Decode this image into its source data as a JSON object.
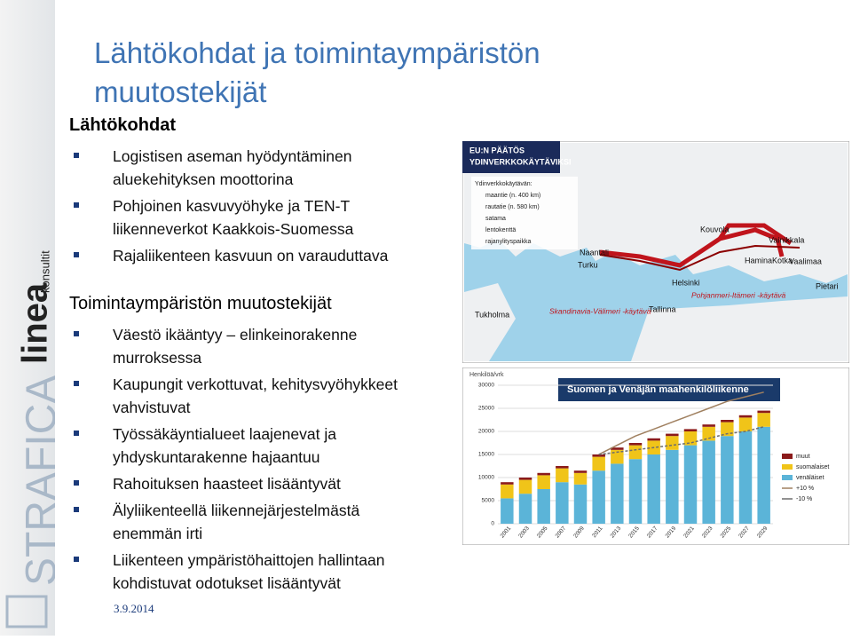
{
  "sidebar": {
    "logo_top": "linea",
    "logo_top_sub": "konsultit",
    "logo_bottom": "STRAFICA"
  },
  "title": [
    "Lähtökohdat ja toimintaympäristön",
    "muutostekijät"
  ],
  "sections": [
    {
      "heading": "Lähtökohdat",
      "items": [
        [
          "Logistisen aseman hyödyntäminen",
          "aluekehityksen moottorina"
        ],
        [
          "Pohjoinen kasvuvyöhyke ja TEN-T",
          "liikenneverkot Kaakkois-Suomessa"
        ],
        [
          "Rajaliikenteen kasvuun on varauduttava"
        ]
      ]
    },
    {
      "heading": "Toimintaympäristön muutostekijät",
      "items": [
        [
          "Väestö ikääntyy – elinkeinorakenne",
          "murroksessa"
        ],
        [
          "Kaupungit verkottuvat, kehitysvyöhykkeet",
          "vahvistuvat"
        ],
        [
          "Työssäkäyntialueet laajenevat ja",
          "yhdyskuntarakenne hajaantuu"
        ],
        [
          "Rahoituksen haasteet lisääntyvät"
        ],
        [
          "Älyliikenteellä liikennejärjestelmästä",
          "enemmän irti"
        ],
        [
          "Liikenteen ympäristöhaittojen hallintaan",
          "kohdistuvat odotukset lisääntyvät"
        ]
      ]
    }
  ],
  "date": "3.9.2014",
  "map": {
    "header": [
      "EU:N PÄÄTÖS",
      "YDINVERKKOKÄYTÄVIKSI"
    ],
    "legend": [
      "Ydinverkkokäytävän:",
      "maantie (n. 400 km)",
      "rautatie (n. 580 km)",
      "satama",
      "lentokenttä",
      "rajanylityspaikka"
    ],
    "places": [
      "Kouvola",
      "Vainikkala",
      "Naantali",
      "Turku",
      "Helsinki",
      "HaminaKotka",
      "Vaalimaa",
      "Pietari",
      "Tukholma",
      "Tallinna"
    ],
    "corridors": [
      "Skandinavia-Välimeri -käytävä",
      "Pohjanmeri-Itämeri -käytävä"
    ]
  },
  "chart": {
    "type": "bar",
    "title": "Suomen ja Venäjän maahenkilöliikenne",
    "ylabel": "Henkilöä/vrk",
    "categories": [
      "2001",
      "2003",
      "2005",
      "2007",
      "2009",
      "2011",
      "2013",
      "2015",
      "2017",
      "2019",
      "2021",
      "2023",
      "2025",
      "2027",
      "2029"
    ],
    "series": [
      {
        "name": "venäläiset",
        "color": "#5bb4d8",
        "values": [
          5500,
          6500,
          7500,
          9000,
          8500,
          11500,
          13000,
          14000,
          15000,
          16000,
          17000,
          18000,
          19000,
          20000,
          21000
        ]
      },
      {
        "name": "suomalaiset",
        "color": "#f0c419",
        "values": [
          3000,
          3000,
          3000,
          3000,
          2500,
          3000,
          3000,
          3000,
          3000,
          3000,
          3000,
          3000,
          3000,
          3000,
          3000
        ]
      },
      {
        "name": "muut",
        "color": "#8b1a1a",
        "values": [
          500,
          500,
          500,
          500,
          500,
          500,
          500,
          500,
          500,
          500,
          500,
          500,
          500,
          500,
          500
        ]
      }
    ],
    "lines": [
      {
        "name": "+10 %",
        "color": "#a08060",
        "values": [
          null,
          null,
          null,
          null,
          null,
          15000,
          17000,
          19000,
          20500,
          22000,
          23500,
          25000,
          26500,
          27500,
          28500
        ]
      },
      {
        "name": "-10 %",
        "color": "#6e6e6e",
        "values": [
          null,
          null,
          null,
          null,
          null,
          15000,
          15500,
          16000,
          16500,
          17000,
          17500,
          18500,
          19500,
          20000,
          21000
        ]
      }
    ],
    "ylim": [
      0,
      30000
    ],
    "yticks": [
      0,
      5000,
      10000,
      15000,
      20000,
      25000,
      30000
    ],
    "grid": true
  }
}
